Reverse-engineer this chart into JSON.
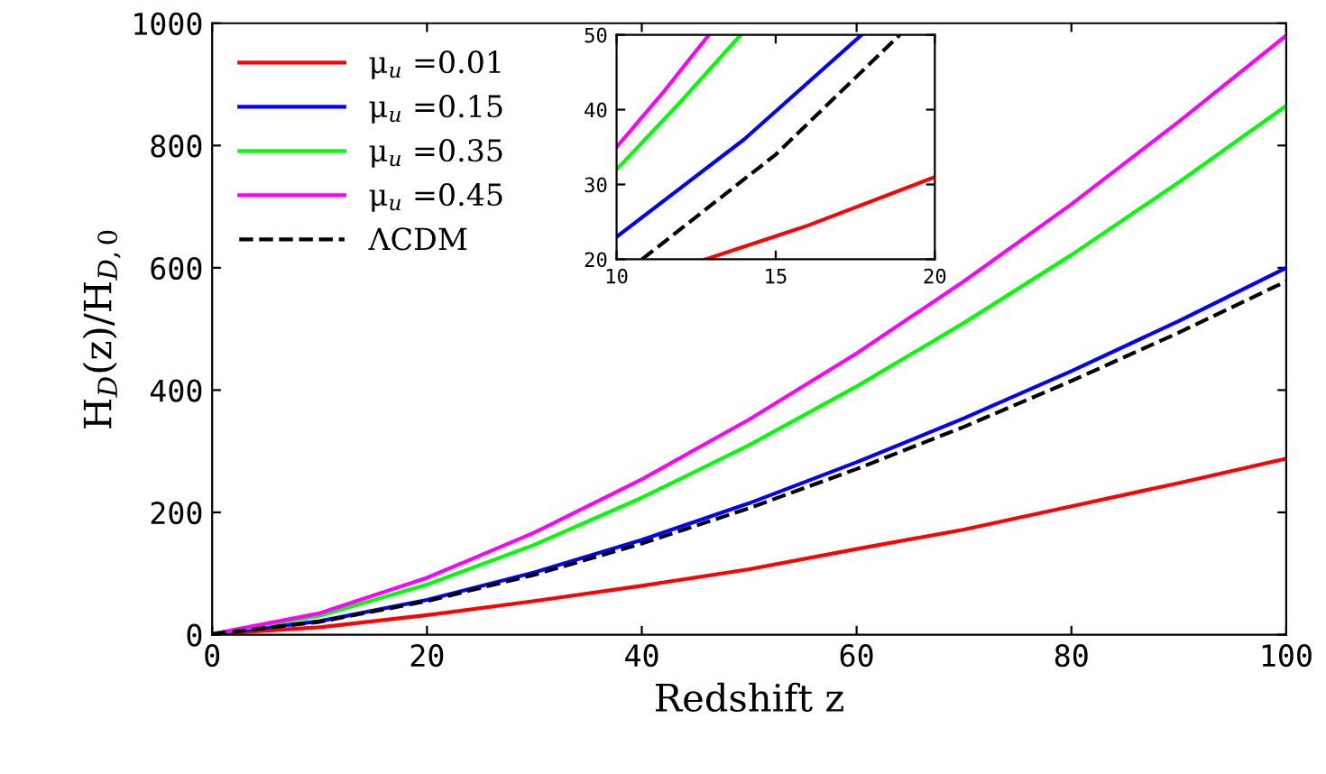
{
  "chart_data": [
    {
      "type": "line",
      "xlabel": "Redshift z",
      "ylabel": "H$_{D}$(z)/H$_{D,0}$",
      "x": [
        0,
        10,
        20,
        30,
        40,
        50,
        60,
        70,
        80,
        90,
        100
      ],
      "xlim": [
        0,
        100
      ],
      "ylim": [
        0,
        1000
      ],
      "xticks": [
        0,
        20,
        40,
        60,
        80,
        100
      ],
      "yticks": [
        0,
        200,
        400,
        600,
        800,
        1000
      ],
      "grid": false,
      "legend": "top left",
      "series": [
        {
          "name": "μ$_{u}$ =0.01",
          "color": "#ff0000",
          "values": [
            1,
            12,
            32,
            55,
            80,
            107,
            140,
            172,
            210,
            248,
            288
          ]
        },
        {
          "name": "μ$_{u}$ =0.15",
          "color": "#0000ff",
          "values": [
            1,
            22,
            57,
            102,
            155,
            215,
            282,
            354,
            431,
            513,
            600
          ]
        },
        {
          "name": "μ$_{u}$ =0.35",
          "color": "#00ff00",
          "values": [
            1,
            31,
            82,
            147,
            224,
            310,
            406,
            510,
            621,
            740,
            865
          ]
        },
        {
          "name": "μ$_{u}$ =0.45",
          "color": "#ff00ff",
          "values": [
            1,
            35,
            93,
            167,
            254,
            352,
            460,
            578,
            704,
            839,
            980
          ]
        },
        {
          "name": "ΛCDM",
          "color": "#000000",
          "line_style": "dashed",
          "values": [
            1,
            21,
            55,
            98,
            149,
            207,
            271,
            340,
            415,
            494,
            578
          ]
        }
      ]
    },
    {
      "type": "line",
      "xlim": [
        10,
        20
      ],
      "ylim": [
        20,
        50
      ],
      "xticks": [
        10,
        15,
        20
      ],
      "yticks": [
        20,
        30,
        40,
        50
      ],
      "grid": false,
      "series": [
        {
          "color": "#ff0000",
          "x": [
            12.8,
            16,
            20
          ],
          "values": [
            20,
            24.5,
            31
          ]
        },
        {
          "color": "#0000ff",
          "x": [
            10,
            14,
            17.7
          ],
          "values": [
            23,
            36,
            50
          ]
        },
        {
          "color": "#00ff00",
          "x": [
            10,
            12,
            13.9
          ],
          "values": [
            32,
            41,
            50
          ]
        },
        {
          "color": "#ff00ff",
          "x": [
            10,
            11.5,
            12.9
          ],
          "values": [
            35,
            42.5,
            50
          ]
        },
        {
          "color": "#000000",
          "line_style": "dashed",
          "x": [
            10.8,
            15,
            18.9
          ],
          "values": [
            20,
            34,
            50
          ]
        }
      ]
    }
  ]
}
